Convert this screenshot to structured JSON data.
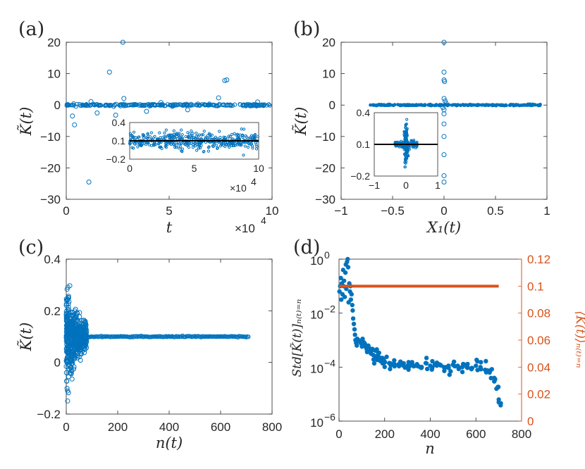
{
  "figure": {
    "colors": {
      "blue": "#0072bd",
      "orange": "#d95319",
      "axis": "#262626",
      "black": "#000000"
    }
  },
  "chart_data": [
    {
      "id": "a",
      "type": "scatter",
      "panel_label": "(a)",
      "xlabel": "t",
      "ylabel": "K̃(t)",
      "xlim": [
        0,
        10
      ],
      "ylim": [
        -30,
        20
      ],
      "xticks": [
        "0",
        "5",
        "10"
      ],
      "yticks": [
        "20",
        "10",
        "0",
        "−10",
        "−20",
        "−30"
      ],
      "ytick_values": [
        20,
        10,
        0,
        -10,
        -20,
        -30
      ],
      "xtick_values": [
        0,
        5,
        10
      ],
      "x_multiplier": "×10",
      "x_multiplier_exp": "4",
      "outliers": [
        [
          1.1,
          -24.5
        ],
        [
          2.75,
          20
        ],
        [
          2.1,
          10.5
        ],
        [
          7.7,
          7.8
        ],
        [
          7.8,
          8
        ],
        [
          0.4,
          -6.3
        ],
        [
          0.3,
          -3.5
        ],
        [
          1.5,
          -2.5
        ],
        [
          2.4,
          -3.2
        ],
        [
          3.9,
          -2
        ],
        [
          5.9,
          -1.5
        ],
        [
          7.4,
          2.3
        ],
        [
          1.2,
          1.1
        ],
        [
          2.8,
          2.1
        ],
        [
          4.6,
          0.8
        ],
        [
          9.3,
          1
        ]
      ],
      "inset": {
        "xlim": [
          0,
          10
        ],
        "ylim": [
          -0.2,
          0.4
        ],
        "xticks": [
          "0",
          "5",
          "10"
        ],
        "yticks": [
          "0.4",
          "0.1",
          "−0.2"
        ],
        "xtick_values": [
          0,
          5,
          10
        ],
        "ytick_values": [
          0.4,
          0.1,
          -0.2
        ],
        "x_multiplier": "×10",
        "x_multiplier_exp": "4",
        "fit_line_y": 0.1
      }
    },
    {
      "id": "b",
      "type": "scatter",
      "panel_label": "(b)",
      "xlabel": "X₁(t)",
      "ylabel": "K̃(t)",
      "xlim": [
        -1,
        1
      ],
      "ylim": [
        -30,
        20
      ],
      "xticks": [
        "−1",
        "−0.5",
        "0",
        "0.5",
        "1"
      ],
      "yticks": [
        "20",
        "10",
        "0",
        "−10",
        "−20",
        "−30"
      ],
      "xtick_values": [
        -1,
        -0.5,
        0,
        0.5,
        1
      ],
      "ytick_values": [
        20,
        10,
        0,
        -10,
        -20,
        -30
      ],
      "band_range": [
        -0.72,
        0.94
      ],
      "outliers": [
        [
          0,
          20
        ],
        [
          0,
          10.5
        ],
        [
          0,
          8
        ],
        [
          0.005,
          7.5
        ],
        [
          0,
          2.1
        ],
        [
          0,
          -1.5
        ],
        [
          0,
          -2.8
        ],
        [
          0,
          -6
        ],
        [
          0,
          -10
        ],
        [
          0,
          -15.8
        ],
        [
          0,
          -22.5
        ],
        [
          0,
          -24.5
        ],
        [
          0.01,
          1.3
        ],
        [
          -0.01,
          -0.8
        ],
        [
          0.02,
          0.6
        ]
      ],
      "inset": {
        "xlim": [
          -1,
          1
        ],
        "ylim": [
          -0.2,
          0.4
        ],
        "xticks": [
          "−1",
          "0",
          "1"
        ],
        "yticks": [
          "0.4",
          "0.1",
          "−0.2"
        ],
        "xtick_values": [
          -1,
          0,
          1
        ],
        "ytick_values": [
          0.4,
          0.1,
          -0.2
        ],
        "fit_line_y": 0.1
      }
    },
    {
      "id": "c",
      "type": "scatter",
      "panel_label": "(c)",
      "xlabel": "n(t)",
      "ylabel": "K̃(t)",
      "xlim": [
        0,
        800
      ],
      "ylim": [
        -0.2,
        0.4
      ],
      "xticks": [
        "0",
        "200",
        "400",
        "600",
        "800"
      ],
      "yticks": [
        "0.4",
        "0.2",
        "0",
        "−0.2"
      ],
      "xtick_values": [
        0,
        200,
        400,
        600,
        800
      ],
      "ytick_values": [
        0.4,
        0.2,
        0,
        -0.2
      ],
      "converged_value": 0.1,
      "converged_from": 80,
      "converged_to": 710
    },
    {
      "id": "d",
      "type": "scatter",
      "panel_label": "(d)",
      "xlabel": "n",
      "ylabel_left": "Std[K̃(t)]ₙ₍ₜ₎₌ₙ",
      "ylabel_right": "⟨K̃(t)⟩ₙ₍ₜ₎₌ₙ",
      "xlim": [
        0,
        800
      ],
      "xticks": [
        "0",
        "200",
        "400",
        "600",
        "800"
      ],
      "xtick_values": [
        0,
        200,
        400,
        600,
        800
      ],
      "ylim_left_log10": [
        -6,
        0
      ],
      "yticks_left": [
        {
          "base": "10",
          "exp": "0",
          "log": 0
        },
        {
          "base": "10",
          "exp": "−2",
          "log": -2
        },
        {
          "base": "10",
          "exp": "−4",
          "log": -4
        },
        {
          "base": "10",
          "exp": "−6",
          "log": -6
        }
      ],
      "ylim_right": [
        0,
        0.12
      ],
      "yticks_right": [
        "0.12",
        "0.1",
        "0.08",
        "0.06",
        "0.04",
        "0.02",
        "0"
      ],
      "ytick_right_values": [
        0.12,
        0.1,
        0.08,
        0.06,
        0.04,
        0.02,
        0
      ],
      "series": [
        {
          "name": "Std (log10)",
          "axis": "left",
          "color": "#0072bd",
          "x": [
            2,
            5,
            8,
            10,
            12,
            15,
            18,
            20,
            22,
            25,
            28,
            30,
            32,
            35,
            38,
            40,
            42,
            45,
            48,
            50,
            52,
            55,
            58,
            60,
            62,
            65,
            68,
            70,
            72,
            75,
            78,
            80,
            85,
            90,
            95,
            100,
            110,
            120,
            130,
            140,
            150,
            160,
            170,
            180,
            190,
            200,
            220,
            240,
            260,
            280,
            300,
            320,
            340,
            360,
            380,
            400,
            420,
            440,
            460,
            480,
            500,
            520,
            540,
            560,
            580,
            600,
            620,
            640,
            660,
            680,
            690,
            700
          ],
          "log10y": [
            -1.2,
            -1.0,
            -0.7,
            -1.5,
            -0.9,
            -1.3,
            -0.4,
            -1.0,
            -0.8,
            -1.4,
            -0.5,
            -0.2,
            -1.1,
            -0.1,
            0.0,
            -0.3,
            -1.6,
            -0.9,
            -1.2,
            -1.0,
            -1.5,
            -1.3,
            -1.7,
            -1.9,
            -2.2,
            -2.4,
            -2.6,
            -2.8,
            -3.0,
            -3.1,
            -3.2,
            -2.95,
            -3.0,
            -3.05,
            -3.1,
            -3.15,
            -3.2,
            -3.3,
            -3.4,
            -3.5,
            -3.55,
            -3.6,
            -3.65,
            -3.7,
            -3.75,
            -3.8,
            -3.85,
            -3.9,
            -3.9,
            -3.9,
            -3.95,
            -3.85,
            -3.95,
            -4.0,
            -3.85,
            -3.95,
            -3.9,
            -3.9,
            -4.0,
            -3.95,
            -3.9,
            -3.95,
            -4.0,
            -4.0,
            -4.05,
            -3.95,
            -4.0,
            -4.1,
            -4.2,
            -4.4,
            -4.8,
            -5.2
          ]
        },
        {
          "name": "Mean",
          "axis": "right",
          "color": "#d95319",
          "x": [
            0,
            700
          ],
          "y": [
            0.1,
            0.1
          ]
        }
      ]
    }
  ]
}
